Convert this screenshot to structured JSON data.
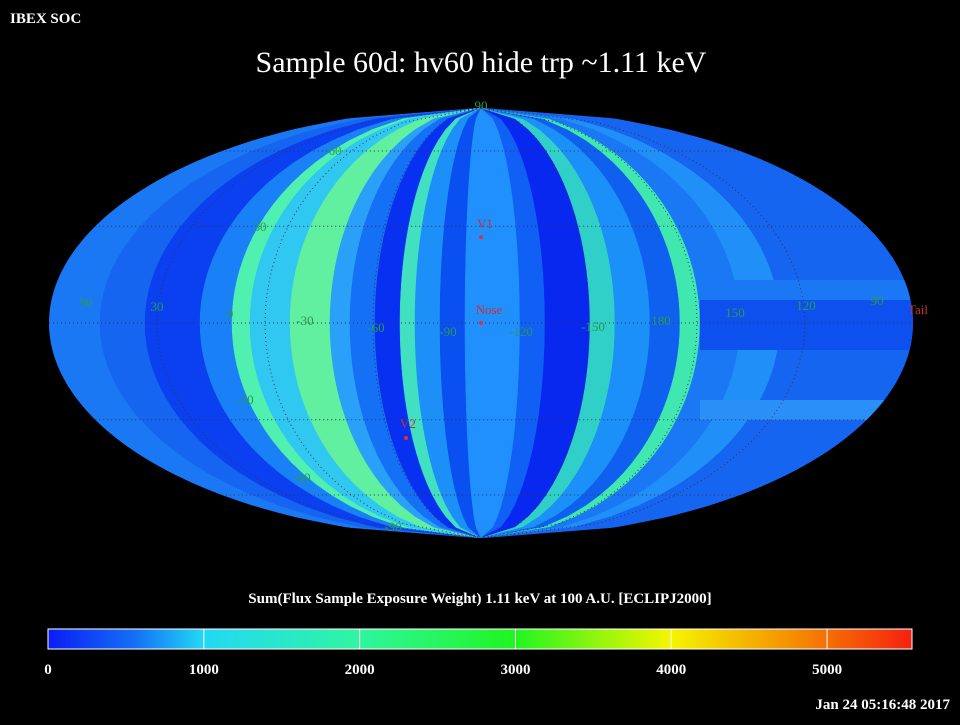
{
  "header": {
    "label": "IBEX SOC",
    "title": "Sample 60d: hv60 hide trp ~1.11 keV",
    "timestamp": "Jan 24 05:16:48 2017"
  },
  "map": {
    "grid_labels": [
      "90",
      "60",
      "30",
      "90",
      "30",
      "0",
      "-30",
      "-60",
      "-90",
      "-120",
      "-150",
      "180",
      "150",
      "120",
      "90",
      "-30",
      "-60",
      "-90"
    ],
    "markers": [
      "V1",
      "Nose",
      "V2",
      "Tail"
    ]
  },
  "colorbar": {
    "title": "Sum(Flux Sample Exposure Weight)  1.11 keV at 100 A.U. [ECLIPJ2000]",
    "range": [
      0,
      5545
    ],
    "ticks": [
      0,
      1000,
      2000,
      3000,
      4000,
      5000
    ]
  }
}
